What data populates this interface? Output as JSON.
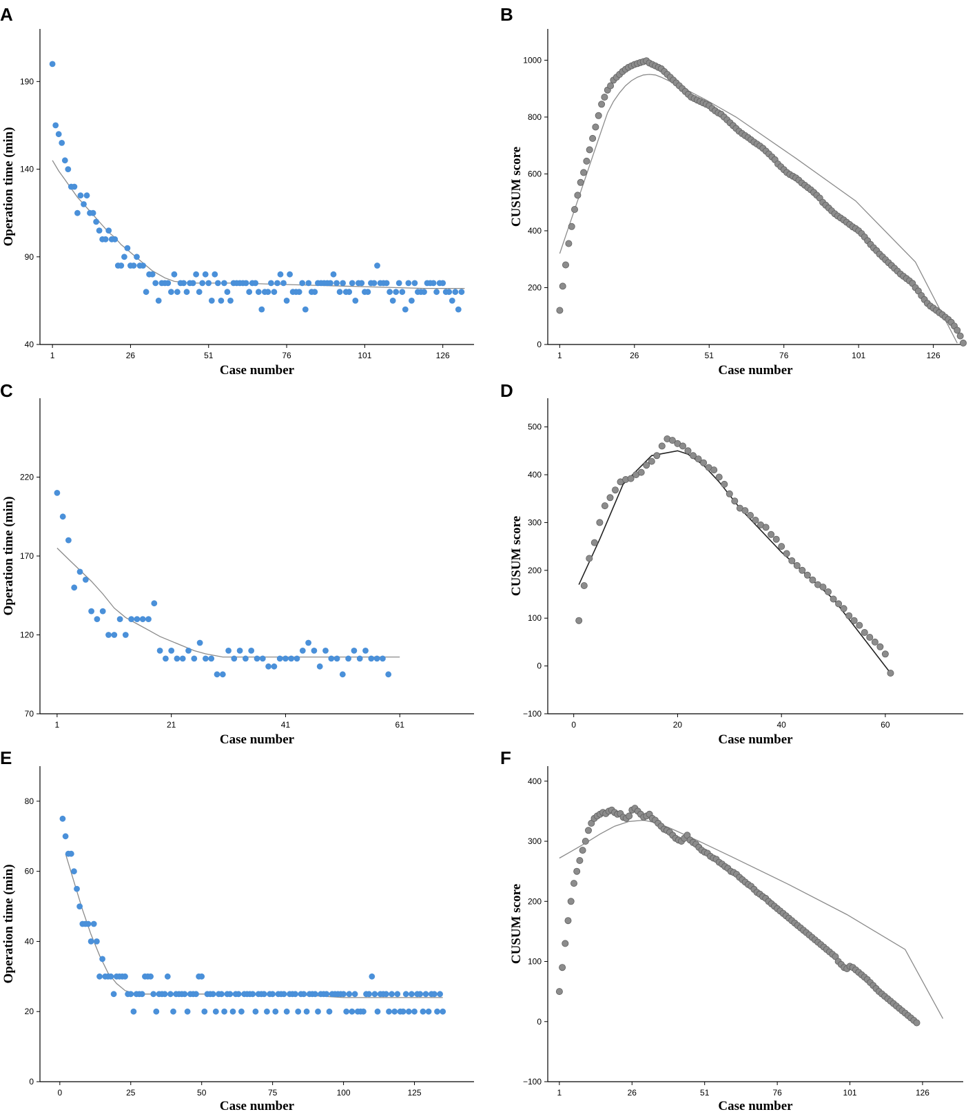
{
  "colors": {
    "blue_point": "#4a90d9",
    "grey_point": "#8c8c8c",
    "grey_point_edge": "#5f5f5f",
    "fit_grey": "#8a8a8a",
    "fit_black": "#222222",
    "axis": "#000000"
  },
  "chart_data": [
    {
      "panel": "A",
      "type": "scatter",
      "point_color": "blue",
      "xlabel": "Case number",
      "ylabel": "Operation time (min)",
      "xlim": [
        -3,
        136
      ],
      "ylim": [
        40,
        220
      ],
      "xticks": [
        1,
        26,
        51,
        76,
        101,
        126
      ],
      "yticks": [
        40,
        90,
        140,
        190
      ],
      "y": [
        200,
        165,
        160,
        155,
        145,
        140,
        130,
        130,
        115,
        125,
        120,
        125,
        115,
        115,
        110,
        105,
        100,
        100,
        105,
        100,
        100,
        85,
        85,
        90,
        95,
        85,
        85,
        90,
        85,
        85,
        70,
        80,
        80,
        75,
        65,
        75,
        75,
        75,
        70,
        80,
        70,
        75,
        75,
        70,
        75,
        75,
        80,
        70,
        75,
        80,
        75,
        65,
        80,
        75,
        65,
        75,
        70,
        65,
        75,
        75,
        75,
        75,
        75,
        70,
        75,
        75,
        70,
        60,
        70,
        70,
        75,
        70,
        75,
        80,
        75,
        65,
        80,
        70,
        70,
        70,
        75,
        60,
        75,
        70,
        70,
        75,
        75,
        75,
        75,
        75,
        80,
        75,
        70,
        75,
        70,
        70,
        75,
        65,
        75,
        75,
        70,
        70,
        75,
        75,
        85,
        75,
        75,
        75,
        70,
        65,
        70,
        75,
        70,
        60,
        75,
        65,
        75,
        70,
        70,
        70,
        75,
        75,
        75,
        70,
        75,
        75,
        70,
        70,
        65,
        70,
        60,
        70
      ],
      "fit": {
        "x": [
          1,
          3,
          5,
          7,
          9,
          11,
          13,
          15,
          17,
          19,
          21,
          23,
          25,
          27,
          29,
          31,
          33,
          35,
          37,
          40,
          45,
          50,
          60,
          80,
          100,
          120,
          133
        ],
        "y": [
          145,
          139,
          134,
          129,
          124,
          120,
          116,
          112,
          108,
          104,
          101,
          97,
          94,
          91,
          88,
          85,
          82,
          80,
          78,
          76,
          75,
          75,
          75,
          74,
          73,
          72,
          72
        ]
      }
    },
    {
      "panel": "B",
      "type": "scatter",
      "point_color": "grey",
      "xlabel": "Case number",
      "ylabel": "CUSUM score",
      "xlim": [
        -3,
        136
      ],
      "ylim": [
        0,
        1110
      ],
      "xticks": [
        1,
        26,
        51,
        76,
        101,
        126
      ],
      "yticks": [
        0,
        200,
        400,
        600,
        800,
        1000
      ],
      "y": [
        120,
        205,
        280,
        355,
        415,
        475,
        525,
        570,
        605,
        645,
        685,
        725,
        765,
        805,
        845,
        870,
        895,
        910,
        930,
        940,
        950,
        960,
        968,
        975,
        980,
        985,
        988,
        992,
        995,
        998,
        990,
        985,
        980,
        975,
        970,
        960,
        950,
        940,
        930,
        920,
        910,
        900,
        890,
        880,
        870,
        865,
        860,
        855,
        850,
        845,
        840,
        830,
        822,
        815,
        810,
        800,
        790,
        780,
        770,
        760,
        750,
        742,
        735,
        728,
        720,
        712,
        705,
        698,
        690,
        680,
        670,
        660,
        650,
        635,
        625,
        615,
        605,
        598,
        592,
        586,
        578,
        568,
        560,
        552,
        544,
        535,
        525,
        515,
        500,
        490,
        480,
        470,
        460,
        452,
        445,
        438,
        430,
        422,
        414,
        408,
        400,
        390,
        378,
        365,
        352,
        340,
        330,
        318,
        308,
        298,
        288,
        278,
        268,
        258,
        248,
        240,
        232,
        224,
        215,
        200,
        188,
        172,
        158,
        145,
        135,
        128,
        120,
        112,
        105,
        96,
        88,
        78,
        65,
        50,
        30,
        5
      ],
      "fit": {
        "x": [
          1,
          3,
          5,
          7,
          9,
          11,
          13,
          15,
          17,
          19,
          21,
          23,
          25,
          27,
          29,
          31,
          33,
          35,
          40,
          50,
          60,
          80,
          100,
          120,
          134
        ],
        "y": [
          320,
          382,
          444,
          506,
          568,
          630,
          692,
          754,
          815,
          855,
          885,
          910,
          928,
          940,
          948,
          950,
          948,
          940,
          915,
          860,
          800,
          655,
          505,
          290,
          5
        ]
      }
    },
    {
      "panel": "C",
      "type": "scatter",
      "point_color": "blue",
      "xlabel": "Case number",
      "ylabel": "Operation time (min)",
      "xlim": [
        -2,
        74
      ],
      "ylim": [
        70,
        270
      ],
      "xticks": [
        1,
        21,
        41,
        61
      ],
      "yticks": [
        70,
        120,
        170,
        220
      ],
      "y": [
        210,
        195,
        180,
        150,
        160,
        155,
        135,
        130,
        135,
        120,
        120,
        130,
        120,
        130,
        130,
        130,
        130,
        140,
        110,
        105,
        110,
        105,
        105,
        110,
        105,
        115,
        105,
        105,
        95,
        95,
        110,
        105,
        110,
        105,
        110,
        105,
        105,
        100,
        100,
        105,
        105,
        105,
        105,
        110,
        115,
        110,
        100,
        110,
        105,
        105,
        95,
        105,
        110,
        105,
        110,
        105,
        105,
        105,
        95
      ],
      "fit": {
        "x": [
          1,
          3,
          5,
          7,
          9,
          11,
          13,
          15,
          17,
          19,
          21,
          23,
          25,
          27,
          30,
          35,
          40,
          45,
          50,
          55,
          61
        ],
        "y": [
          175,
          168,
          161,
          154,
          146,
          137,
          131,
          127,
          123,
          119,
          116,
          113,
          110,
          108,
          106,
          106,
          106,
          106,
          106,
          106,
          106
        ]
      }
    },
    {
      "panel": "D",
      "type": "scatter",
      "point_color": "grey",
      "xlabel": "Case number",
      "ylabel": "CUSUM score",
      "xlim": [
        -5,
        75
      ],
      "ylim": [
        -100,
        560
      ],
      "xticks": [
        0,
        20,
        40,
        60
      ],
      "yticks": [
        -100,
        0,
        100,
        200,
        300,
        400,
        500
      ],
      "y": [
        95,
        168,
        225,
        258,
        300,
        335,
        352,
        368,
        385,
        390,
        392,
        400,
        405,
        420,
        428,
        440,
        460,
        475,
        472,
        465,
        460,
        450,
        440,
        433,
        425,
        415,
        410,
        395,
        380,
        360,
        345,
        330,
        325,
        315,
        305,
        295,
        290,
        275,
        265,
        250,
        235,
        220,
        210,
        200,
        190,
        180,
        170,
        165,
        155,
        140,
        130,
        120,
        105,
        95,
        85,
        70,
        60,
        50,
        40,
        25,
        -15
      ],
      "fit": {
        "x": [
          1,
          5,
          9.5,
          15,
          20,
          22,
          25,
          28,
          32,
          40,
          50,
          61
        ],
        "y": [
          170,
          265,
          380,
          440,
          450,
          443,
          420,
          385,
          330,
          238,
          140,
          -15
        ]
      }
    },
    {
      "panel": "E",
      "type": "scatter",
      "point_color": "blue",
      "xlabel": "Case number",
      "ylabel": "Operation time (min)",
      "xlim": [
        -7,
        146
      ],
      "ylim": [
        0,
        90
      ],
      "xticks": [
        0,
        25,
        50,
        75,
        100,
        125
      ],
      "yticks": [
        0,
        20,
        40,
        60,
        80
      ],
      "y": [
        75,
        70,
        65,
        65,
        60,
        55,
        50,
        45,
        45,
        45,
        40,
        45,
        40,
        30,
        35,
        30,
        30,
        30,
        25,
        30,
        30,
        30,
        30,
        25,
        25,
        20,
        25,
        25,
        25,
        30,
        30,
        30,
        25,
        20,
        25,
        25,
        25,
        30,
        25,
        20,
        25,
        25,
        25,
        25,
        20,
        25,
        25,
        25,
        30,
        30,
        20,
        25,
        25,
        25,
        20,
        25,
        25,
        20,
        25,
        25,
        20,
        25,
        25,
        20,
        25,
        25,
        25,
        25,
        20,
        25,
        25,
        25,
        20,
        25,
        25,
        20,
        25,
        25,
        25,
        20,
        25,
        25,
        25,
        20,
        25,
        25,
        20,
        25,
        25,
        25,
        20,
        25,
        25,
        25,
        20,
        25,
        25,
        25,
        25,
        25,
        20,
        25,
        20,
        25,
        20,
        20,
        20,
        25,
        25,
        30,
        25,
        20,
        25,
        25,
        25,
        20,
        25,
        20,
        25,
        20,
        20,
        25,
        20,
        25,
        20,
        25,
        25,
        20,
        25,
        20,
        25,
        25,
        20,
        25,
        20
      ],
      "fit": {
        "x": [
          2,
          5,
          8,
          11,
          14,
          17,
          20,
          23,
          27,
          32,
          40,
          60,
          80,
          100,
          120,
          135
        ],
        "y": [
          65,
          57,
          49,
          42,
          36,
          31,
          28,
          26,
          25,
          25,
          25,
          25,
          25,
          24,
          24,
          24
        ]
      }
    },
    {
      "panel": "F",
      "type": "scatter",
      "point_color": "grey",
      "xlabel": "Case number",
      "ylabel": "CUSUM score",
      "xlim": [
        -3,
        140
      ],
      "ylim": [
        -100,
        425
      ],
      "xticks": [
        1,
        26,
        51,
        76,
        101,
        126
      ],
      "yticks": [
        -100,
        0,
        100,
        200,
        300,
        400
      ],
      "y": [
        50,
        90,
        130,
        168,
        200,
        230,
        250,
        268,
        285,
        300,
        318,
        330,
        338,
        342,
        345,
        348,
        346,
        350,
        352,
        348,
        345,
        346,
        340,
        338,
        342,
        352,
        355,
        350,
        345,
        340,
        342,
        345,
        338,
        335,
        330,
        325,
        320,
        318,
        315,
        310,
        305,
        302,
        300,
        305,
        310,
        302,
        298,
        295,
        290,
        285,
        282,
        280,
        275,
        272,
        270,
        265,
        262,
        258,
        255,
        250,
        248,
        245,
        240,
        236,
        232,
        228,
        225,
        220,
        215,
        212,
        208,
        205,
        200,
        196,
        192,
        188,
        184,
        180,
        176,
        172,
        168,
        164,
        160,
        156,
        152,
        148,
        144,
        140,
        136,
        132,
        128,
        124,
        120,
        116,
        112,
        108,
        100,
        95,
        90,
        88,
        92,
        90,
        86,
        82,
        78,
        74,
        70,
        65,
        60,
        55,
        50,
        46,
        42,
        38,
        34,
        30,
        26,
        22,
        18,
        14,
        10,
        6,
        2,
        -2
      ],
      "fit": {
        "x": [
          1,
          5,
          10,
          15,
          20,
          25,
          30,
          35,
          40,
          50,
          60,
          80,
          100,
          120,
          133
        ],
        "y": [
          272,
          283,
          297,
          312,
          325,
          333,
          335,
          330,
          320,
          298,
          275,
          228,
          178,
          120,
          5
        ]
      }
    }
  ]
}
